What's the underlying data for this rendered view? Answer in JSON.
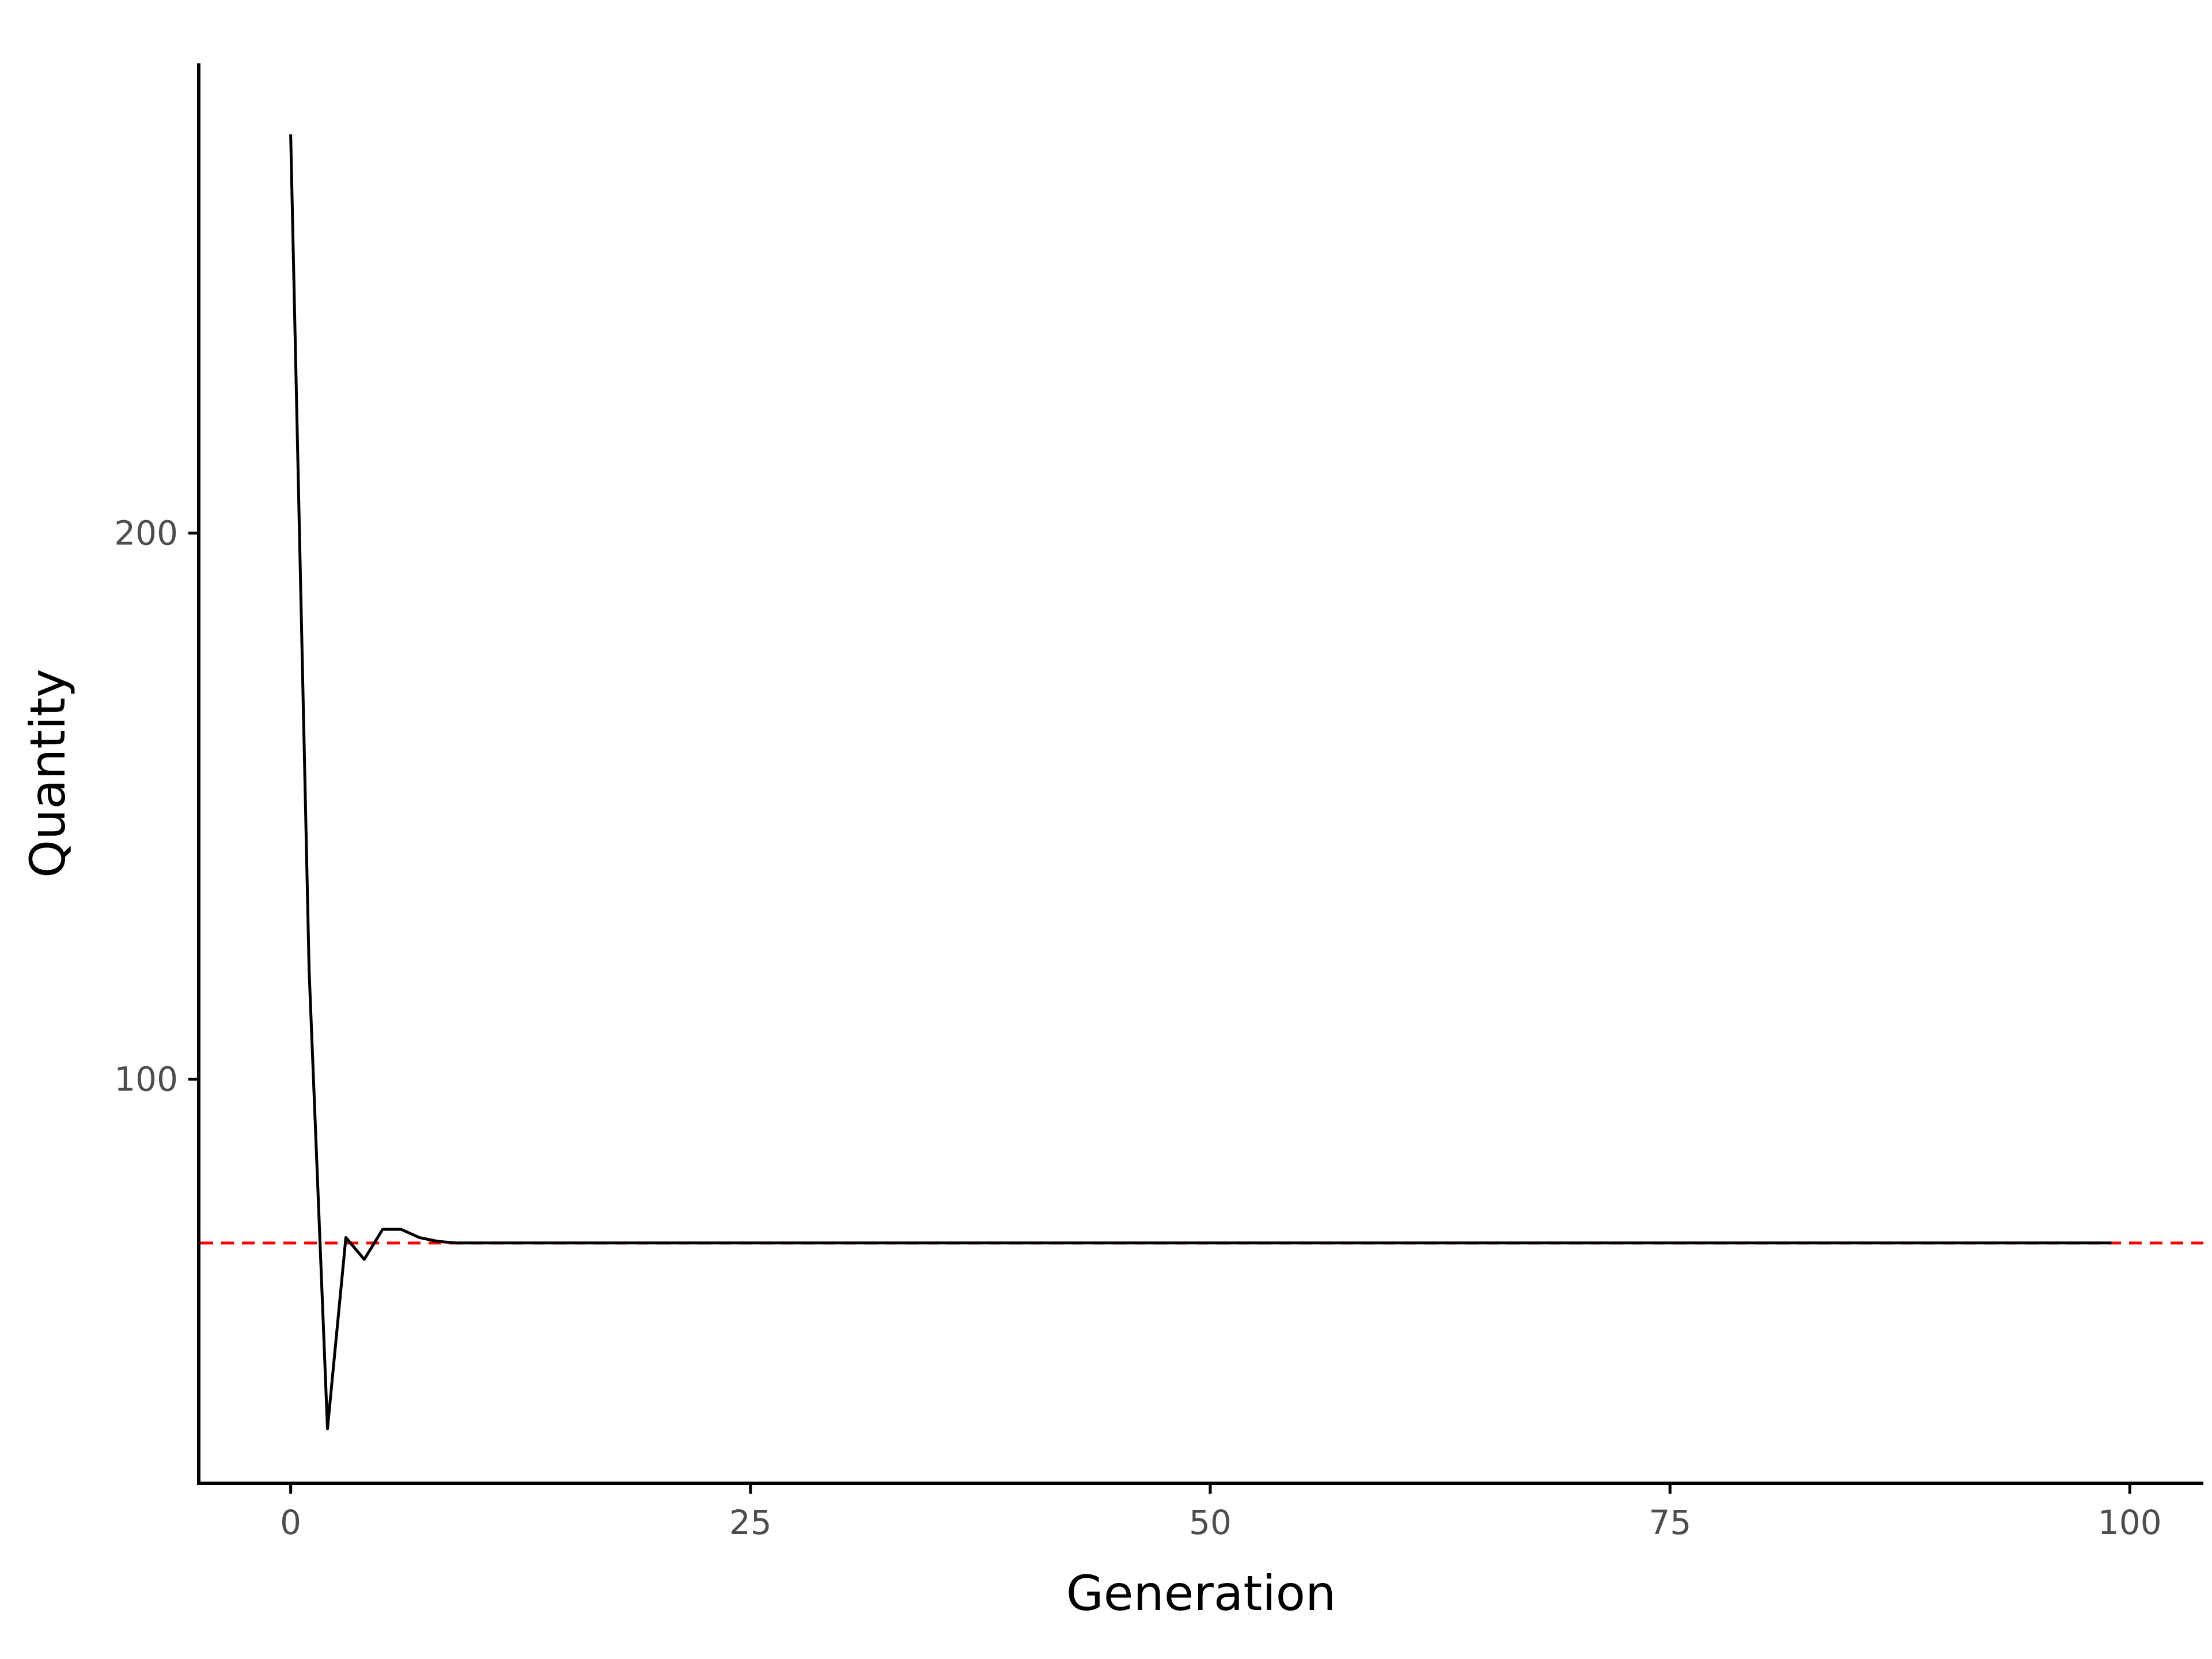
{
  "chart_data": {
    "type": "line",
    "title": "",
    "xlabel": "Generation",
    "ylabel": "Quantity",
    "xlim": [
      -5,
      104
    ],
    "ylim": [
      26,
      286
    ],
    "x_ticks": [
      0,
      25,
      50,
      75,
      100
    ],
    "y_ticks": [
      100,
      200
    ],
    "grid": false,
    "legend": "none",
    "series": [
      {
        "color": "#000000",
        "x": [
          0,
          1,
          2,
          3,
          4,
          5,
          6,
          7,
          8,
          9,
          10,
          11,
          12,
          13,
          14,
          15,
          16,
          17,
          18,
          19,
          20,
          21,
          22,
          23,
          24,
          25,
          26,
          27,
          28,
          29,
          30,
          31,
          32,
          33,
          34,
          35,
          36,
          37,
          38,
          39,
          40,
          41,
          42,
          43,
          44,
          45,
          46,
          47,
          48,
          49,
          50,
          51,
          52,
          53,
          54,
          55,
          56,
          57,
          58,
          59,
          60,
          61,
          62,
          63,
          64,
          65,
          66,
          67,
          68,
          69,
          70,
          71,
          72,
          73,
          74,
          75,
          76,
          77,
          78,
          79,
          80,
          81,
          82,
          83,
          84,
          85,
          86,
          87,
          88,
          89,
          90,
          91,
          92,
          93,
          94,
          95,
          96,
          97,
          98,
          99
        ],
        "values": [
          273,
          120,
          36,
          71,
          67,
          72.5,
          72.5,
          71,
          70.3,
          70,
          70,
          70,
          70,
          70,
          70,
          70,
          70,
          70,
          70,
          70,
          70,
          70,
          70,
          70,
          70,
          70,
          70,
          70,
          70,
          70,
          70,
          70,
          70,
          70,
          70,
          70,
          70,
          70,
          70,
          70,
          70,
          70,
          70,
          70,
          70,
          70,
          70,
          70,
          70,
          70,
          70,
          70,
          70,
          70,
          70,
          70,
          70,
          70,
          70,
          70,
          70,
          70,
          70,
          70,
          70,
          70,
          70,
          70,
          70,
          70,
          70,
          70,
          70,
          70,
          70,
          70,
          70,
          70,
          70,
          70,
          70,
          70,
          70,
          70,
          70,
          70,
          70,
          70,
          70,
          70,
          70,
          70,
          70,
          70,
          70,
          70,
          70,
          70,
          70,
          70
        ]
      }
    ],
    "reference_lines": [
      {
        "orientation": "horizontal",
        "y": 70,
        "color": "#ff0000",
        "style": "dashed"
      }
    ]
  }
}
